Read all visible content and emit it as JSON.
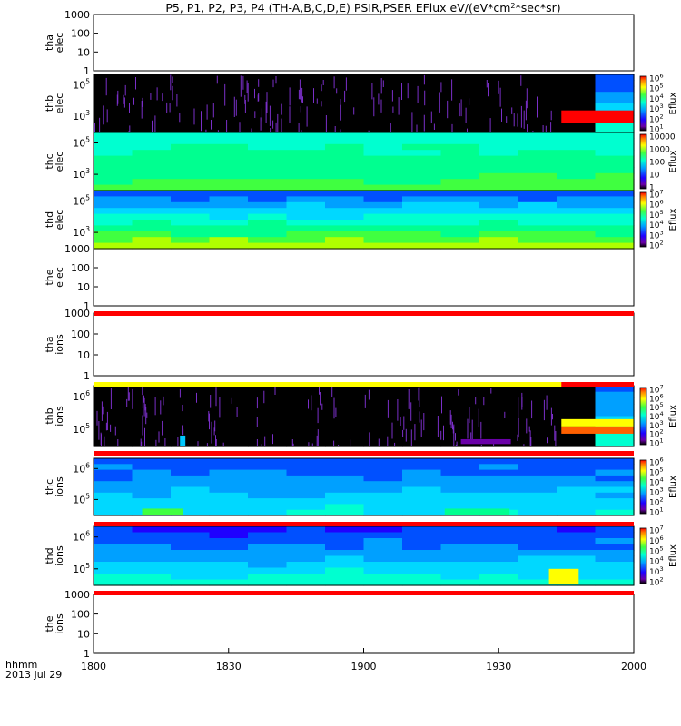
{
  "title_parts": [
    "P5, P1, P2, P3, P4 (TH-A,B,C,D,E) PSIR,PSER EFlux eV/(eV*cm",
    "2",
    "*sec*sr)"
  ],
  "x_axis": {
    "ticks": [
      "1800",
      "1830",
      "1900",
      "1930",
      "2000"
    ],
    "corner_label_1": "hhmm",
    "corner_label_2": "2013 Jul 29"
  },
  "colors": {
    "black": "#000000",
    "red_bar": "#ff0000",
    "yellow_bar": "#ffff00",
    "purple_noise": "#7a2fc8"
  },
  "chart_data": [
    {
      "id": "tha_elec",
      "type": "heatmap",
      "ylabel": [
        "tha",
        "elec"
      ],
      "y_ticks": [
        "1000",
        "100",
        "10",
        "1"
      ],
      "empty": true
    },
    {
      "id": "thb_elec",
      "type": "heatmap",
      "ylabel": [
        "thb",
        "elec"
      ],
      "y_ticks": [
        {
          "b": "10",
          "e": "5"
        },
        {
          "b": "10",
          "e": "3"
        }
      ],
      "colorbar": {
        "label": "Eflux",
        "ticks": [
          {
            "b": "10",
            "e": "6"
          },
          {
            "b": "10",
            "e": "5"
          },
          {
            "b": "10",
            "e": "4"
          },
          {
            "b": "10",
            "e": "3"
          },
          {
            "b": "10",
            "e": "2"
          },
          {
            "b": "10",
            "e": "1"
          }
        ]
      },
      "note": "mostly empty (black with purple noise) until ~19:44, then populated"
    },
    {
      "id": "thc_elec",
      "type": "heatmap",
      "ylabel": [
        "thc",
        "elec"
      ],
      "y_ticks": [
        {
          "b": "10",
          "e": "5"
        },
        {
          "b": "10",
          "e": "3"
        }
      ],
      "colorbar": {
        "label": "Eflux",
        "ticks": [
          "10000",
          "1000",
          "100",
          "10",
          "1"
        ]
      }
    },
    {
      "id": "thd_elec",
      "type": "heatmap",
      "ylabel": [
        "thd",
        "elec"
      ],
      "y_ticks": [
        {
          "b": "10",
          "e": "5"
        },
        {
          "b": "10",
          "e": "3"
        }
      ],
      "colorbar": {
        "label": "Eflux",
        "ticks": [
          {
            "b": "10",
            "e": "7"
          },
          {
            "b": "10",
            "e": "6"
          },
          {
            "b": "10",
            "e": "5"
          },
          {
            "b": "10",
            "e": "4"
          },
          {
            "b": "10",
            "e": "3"
          },
          {
            "b": "10",
            "e": "2"
          }
        ]
      }
    },
    {
      "id": "the_elec",
      "type": "heatmap",
      "ylabel": [
        "the",
        "elec"
      ],
      "y_ticks": [
        "1000",
        "100",
        "10",
        "1"
      ],
      "empty": true
    },
    {
      "id": "tha_ions",
      "type": "heatmap",
      "ylabel": [
        "tha",
        "ions"
      ],
      "y_ticks": [
        "1000",
        "100",
        "10",
        "1"
      ],
      "empty": true
    },
    {
      "id": "thb_ions",
      "type": "heatmap",
      "ylabel": [
        "thb",
        "ions"
      ],
      "y_ticks": [
        {
          "b": "10",
          "e": "6"
        },
        {
          "b": "10",
          "e": "5"
        }
      ],
      "colorbar": {
        "label": "Eflux",
        "ticks": [
          {
            "b": "10",
            "e": "7"
          },
          {
            "b": "10",
            "e": "6"
          },
          {
            "b": "10",
            "e": "5"
          },
          {
            "b": "10",
            "e": "4"
          },
          {
            "b": "10",
            "e": "3"
          },
          {
            "b": "10",
            "e": "2"
          },
          {
            "b": "10",
            "e": "1"
          }
        ]
      },
      "note": "mostly empty until ~19:44, then populated"
    },
    {
      "id": "thc_ions",
      "type": "heatmap",
      "ylabel": [
        "thc",
        "ions"
      ],
      "y_ticks": [
        {
          "b": "10",
          "e": "6"
        },
        {
          "b": "10",
          "e": "5"
        }
      ],
      "colorbar": {
        "label": "Eflux",
        "ticks": [
          {
            "b": "10",
            "e": "6"
          },
          {
            "b": "10",
            "e": "5"
          },
          {
            "b": "10",
            "e": "4"
          },
          {
            "b": "10",
            "e": "3"
          },
          {
            "b": "10",
            "e": "2"
          },
          {
            "b": "10",
            "e": "1"
          }
        ]
      }
    },
    {
      "id": "thd_ions",
      "type": "heatmap",
      "ylabel": [
        "thd",
        "ions"
      ],
      "y_ticks": [
        {
          "b": "10",
          "e": "6"
        },
        {
          "b": "10",
          "e": "5"
        }
      ],
      "colorbar": {
        "label": "Eflux",
        "ticks": [
          {
            "b": "10",
            "e": "7"
          },
          {
            "b": "10",
            "e": "6"
          },
          {
            "b": "10",
            "e": "5"
          },
          {
            "b": "10",
            "e": "4"
          },
          {
            "b": "10",
            "e": "3"
          },
          {
            "b": "10",
            "e": "2"
          }
        ]
      }
    },
    {
      "id": "the_ions",
      "type": "heatmap",
      "ylabel": [
        "the",
        "ions"
      ],
      "y_ticks": [
        "1000",
        "100",
        "10",
        "1"
      ],
      "empty": true
    }
  ]
}
